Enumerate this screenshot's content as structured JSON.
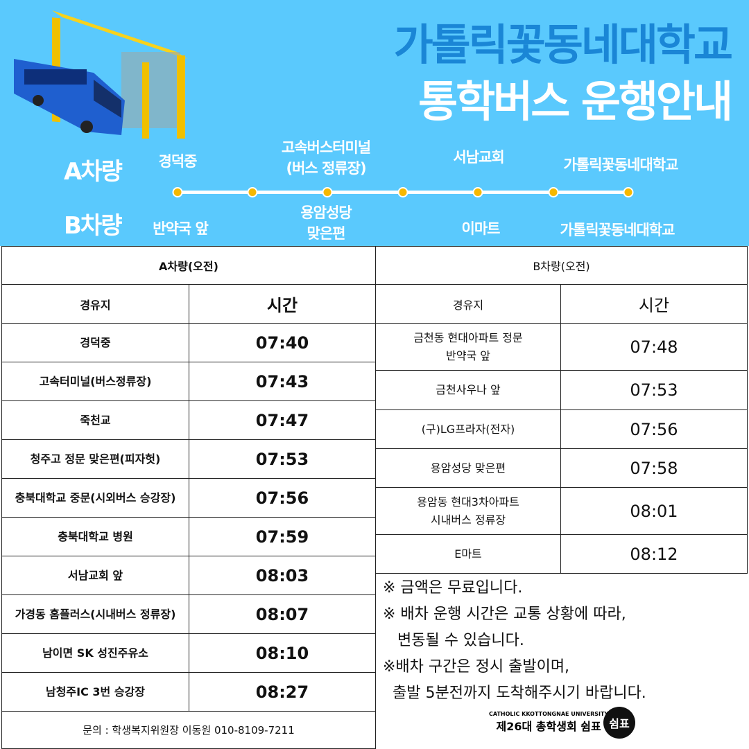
{
  "title": {
    "line1": "가톨릭꽃동네대학교",
    "line2": "통학버스 운행안내"
  },
  "route_map": {
    "a_label": "A차량",
    "b_label": "B차량",
    "a_stops": [
      "경덕중",
      "고속버스터미널\n(버스 정류장)",
      "서남교회",
      "가톨릭꽃동네대학교"
    ],
    "b_stops": [
      "반약국 앞",
      "용암성당\n맞은편",
      "이마트",
      "가톨릭꽃동네대학교"
    ],
    "dot_count": 7
  },
  "table_a": {
    "title": "A차량(오전)",
    "col_stop": "경유지",
    "col_time": "시간",
    "rows": [
      {
        "stop": "경덕중",
        "time": "07:40"
      },
      {
        "stop": "고속터미널(버스정류장)",
        "time": "07:43"
      },
      {
        "stop": "죽천교",
        "time": "07:47"
      },
      {
        "stop": "청주고 정문 맞은편(피자헛)",
        "time": "07:53"
      },
      {
        "stop": "충북대학교 중문(시외버스 승강장)",
        "time": "07:56"
      },
      {
        "stop": "충북대학교 병원",
        "time": "07:59"
      },
      {
        "stop": "서남교회 앞",
        "time": "08:03"
      },
      {
        "stop": "가경동 홈플러스(시내버스 정류장)",
        "time": "08:07"
      },
      {
        "stop": "남이면 SK 성진주유소",
        "time": "08:10"
      },
      {
        "stop": "남청주IC 3번 승강장",
        "time": "08:27"
      }
    ],
    "contact": "문의 : 학생복지위원장 이동원 010-8109-7211"
  },
  "table_b": {
    "title": "B차량(오전)",
    "col_stop": "경유지",
    "col_time": "시간",
    "rows": [
      {
        "stop": "금천동 현대아파트 정문\n반약국 앞",
        "time": "07:48"
      },
      {
        "stop": "금천사우나 앞",
        "time": "07:53"
      },
      {
        "stop": "(구)LG프라자(전자)",
        "time": "07:56"
      },
      {
        "stop": "용암성당 맞은편",
        "time": "07:58"
      },
      {
        "stop": "용암동 현대3차아파트\n시내버스 정류장",
        "time": "08:01"
      },
      {
        "stop": "E마트",
        "time": "08:12"
      }
    ]
  },
  "notes": [
    "※ 금액은 무료입니다.",
    "※ 배차 운행 시간은 교통 상황에 따라,",
    "   변동될 수 있습니다.",
    "※배차 구간은 정시 출발이며,",
    "  출발 5분전까지 도착해주시기 바랍니다."
  ],
  "footer": {
    "en": "CATHOLIC KKOTTONGNAE UNIVERSITY",
    "ko": "제26대 총학생회 쉼표",
    "seal": "쉼표"
  },
  "colors": {
    "banner": "#5ac9fd",
    "title_dark": "#1a86d6",
    "dot": "#f6b800"
  }
}
